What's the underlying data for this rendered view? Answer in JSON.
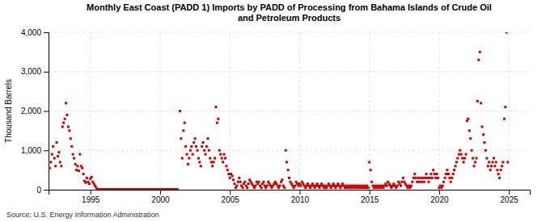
{
  "chart_data": {
    "type": "scatter",
    "title": "Monthly East Coast (PADD 1) Imports by PADD of Processing from Bahama Islands of Crude Oil\nand Petroleum Products",
    "ylabel": "Thousand Barrels",
    "annotations": [
      "Source: U.S. Energy Information Administration"
    ],
    "color": "#cc0000",
    "marker": "square",
    "grid": true,
    "xlim": [
      1992.0,
      2026.5
    ],
    "ylim": [
      0,
      4000
    ],
    "xticks": [
      1995,
      2000,
      2005,
      2010,
      2015,
      2020,
      2025
    ],
    "yticks": [
      0,
      {
        "value": 1000,
        "label": "1,000"
      },
      {
        "value": 2000,
        "label": "2,000"
      },
      {
        "value": 3000,
        "label": "3,000"
      },
      {
        "value": 4000,
        "label": "4,000"
      }
    ],
    "x": [
      1992.08,
      1992.17,
      1992.25,
      1992.33,
      1992.42,
      1992.5,
      1992.58,
      1992.67,
      1992.75,
      1992.83,
      1992.92,
      1993.0,
      1993.08,
      1993.17,
      1993.25,
      1993.33,
      1993.42,
      1993.5,
      1993.58,
      1993.67,
      1993.75,
      1993.83,
      1993.92,
      1994.0,
      1994.08,
      1994.17,
      1994.25,
      1994.33,
      1994.42,
      1994.5,
      1994.58,
      1994.67,
      1994.75,
      1994.83,
      1994.92,
      1995.0,
      1995.08,
      1995.17,
      1995.25,
      1995.33,
      1995.42,
      1995.5,
      1995.58,
      1995.67,
      1995.75,
      1995.83,
      1995.92,
      1996.0,
      1996.08,
      1996.17,
      1996.25,
      1996.33,
      1996.42,
      1996.5,
      1996.58,
      1996.67,
      1996.75,
      1996.83,
      1996.92,
      1997.0,
      1997.08,
      1997.17,
      1997.25,
      1997.33,
      1997.42,
      1997.5,
      1997.58,
      1997.67,
      1997.75,
      1997.83,
      1997.92,
      1998.0,
      1998.08,
      1998.17,
      1998.25,
      1998.33,
      1998.42,
      1998.5,
      1998.58,
      1998.67,
      1998.75,
      1998.83,
      1998.92,
      1999.0,
      1999.08,
      1999.17,
      1999.25,
      1999.33,
      1999.42,
      1999.5,
      1999.58,
      1999.67,
      1999.75,
      1999.83,
      1999.92,
      2000.0,
      2000.08,
      2000.17,
      2000.25,
      2000.33,
      2000.42,
      2000.5,
      2000.58,
      2000.67,
      2000.75,
      2000.83,
      2000.92,
      2001.0,
      2001.08,
      2001.17,
      2001.25,
      2001.42,
      2001.5,
      2001.58,
      2001.67,
      2001.75,
      2001.83,
      2001.92,
      2002.0,
      2002.08,
      2002.17,
      2002.25,
      2002.33,
      2002.42,
      2002.5,
      2002.58,
      2002.67,
      2002.75,
      2002.83,
      2002.92,
      2003.0,
      2003.08,
      2003.17,
      2003.25,
      2003.33,
      2003.42,
      2003.5,
      2003.58,
      2003.67,
      2003.75,
      2003.83,
      2003.92,
      2004.0,
      2004.08,
      2004.17,
      2004.25,
      2004.33,
      2004.42,
      2004.5,
      2004.58,
      2004.67,
      2004.75,
      2004.83,
      2004.92,
      2005.0,
      2005.08,
      2005.17,
      2005.25,
      2005.33,
      2005.42,
      2005.5,
      2005.58,
      2005.67,
      2005.75,
      2005.83,
      2005.92,
      2006.0,
      2006.08,
      2006.17,
      2006.25,
      2006.33,
      2006.42,
      2006.5,
      2006.58,
      2006.67,
      2006.75,
      2006.83,
      2006.92,
      2007.0,
      2007.08,
      2007.17,
      2007.25,
      2007.33,
      2007.42,
      2007.5,
      2007.58,
      2007.67,
      2007.75,
      2007.83,
      2007.92,
      2008.0,
      2008.08,
      2008.17,
      2008.25,
      2008.33,
      2008.42,
      2008.5,
      2008.58,
      2008.67,
      2008.75,
      2008.83,
      2008.92,
      2009.0,
      2009.08,
      2009.17,
      2009.25,
      2009.33,
      2009.42,
      2009.5,
      2009.58,
      2009.67,
      2009.75,
      2009.83,
      2009.92,
      2010.0,
      2010.08,
      2010.17,
      2010.25,
      2010.33,
      2010.42,
      2010.5,
      2010.58,
      2010.67,
      2010.75,
      2010.83,
      2010.92,
      2011.0,
      2011.08,
      2011.17,
      2011.25,
      2011.33,
      2011.42,
      2011.5,
      2011.58,
      2011.67,
      2011.75,
      2011.83,
      2011.92,
      2012.0,
      2012.08,
      2012.17,
      2012.25,
      2012.33,
      2012.42,
      2012.5,
      2012.58,
      2012.67,
      2012.75,
      2012.83,
      2012.92,
      2013.0,
      2013.08,
      2013.17,
      2013.25,
      2013.33,
      2013.42,
      2013.5,
      2013.58,
      2013.67,
      2013.75,
      2013.83,
      2013.92,
      2014.0,
      2014.08,
      2014.17,
      2014.25,
      2014.33,
      2014.42,
      2014.5,
      2014.58,
      2014.67,
      2014.75,
      2014.83,
      2014.92,
      2015.0,
      2015.08,
      2015.17,
      2015.25,
      2015.33,
      2015.42,
      2015.5,
      2015.58,
      2015.67,
      2015.75,
      2015.83,
      2015.92,
      2016.0,
      2016.08,
      2016.17,
      2016.25,
      2016.33,
      2016.42,
      2016.5,
      2016.58,
      2016.67,
      2016.75,
      2016.83,
      2016.92,
      2017.0,
      2017.08,
      2017.17,
      2017.25,
      2017.33,
      2017.42,
      2017.5,
      2017.58,
      2017.67,
      2017.75,
      2017.83,
      2017.92,
      2018.0,
      2018.08,
      2018.17,
      2018.25,
      2018.33,
      2018.42,
      2018.5,
      2018.58,
      2018.67,
      2018.75,
      2018.83,
      2018.92,
      2019.0,
      2019.08,
      2019.17,
      2019.25,
      2019.33,
      2019.42,
      2019.5,
      2019.58,
      2019.67,
      2019.75,
      2019.83,
      2019.92,
      2020.0,
      2020.08,
      2020.17,
      2020.25,
      2020.33,
      2020.42,
      2020.5,
      2020.58,
      2020.67,
      2020.75,
      2020.83,
      2020.92,
      2021.0,
      2021.08,
      2021.17,
      2021.25,
      2021.33,
      2021.42,
      2021.5,
      2021.58,
      2021.67,
      2021.75,
      2021.83,
      2021.92,
      2022.0,
      2022.08,
      2022.17,
      2022.25,
      2022.33,
      2022.42,
      2022.5,
      2022.58,
      2022.67,
      2022.75,
      2022.83,
      2022.92,
      2023.0,
      2023.08,
      2023.17,
      2023.25,
      2023.33,
      2023.42,
      2023.5,
      2023.58,
      2023.67,
      2023.75,
      2023.83,
      2023.92,
      2024.0,
      2024.08,
      2024.17,
      2024.25,
      2024.33,
      2024.42,
      2024.5,
      2024.58,
      2024.67,
      2024.75,
      2024.83,
      2024.92
    ],
    "values": [
      550,
      700,
      900,
      1100,
      800,
      600,
      1200,
      850,
      950,
      700,
      600,
      1600,
      1700,
      1800,
      2200,
      1900,
      1600,
      1500,
      1300,
      1100,
      900,
      800,
      650,
      500,
      600,
      480,
      900,
      600,
      550,
      400,
      220,
      180,
      300,
      200,
      150,
      280,
      320,
      200,
      150,
      100,
      50,
      5,
      5,
      5,
      5,
      5,
      5,
      5,
      5,
      5,
      5,
      5,
      5,
      5,
      5,
      5,
      5,
      5,
      5,
      5,
      5,
      5,
      5,
      5,
      5,
      5,
      5,
      5,
      5,
      5,
      5,
      5,
      5,
      5,
      5,
      5,
      5,
      5,
      5,
      5,
      5,
      5,
      5,
      5,
      5,
      5,
      5,
      5,
      5,
      5,
      5,
      5,
      5,
      5,
      5,
      5,
      5,
      5,
      5,
      5,
      5,
      5,
      5,
      5,
      5,
      5,
      5,
      5,
      5,
      5,
      5,
      2000,
      1300,
      800,
      1500,
      1700,
      1100,
      900,
      650,
      800,
      1000,
      1100,
      900,
      1200,
      1300,
      1100,
      1000,
      800,
      700,
      600,
      1100,
      1200,
      1000,
      900,
      1100,
      1300,
      1000,
      800,
      700,
      600,
      700,
      800,
      2100,
      1700,
      1800,
      1000,
      900,
      800,
      700,
      900,
      800,
      600,
      500,
      400,
      300,
      400,
      350,
      250,
      150,
      50,
      100,
      200,
      300,
      200,
      100,
      50,
      150,
      200,
      100,
      50,
      150,
      250,
      200,
      150,
      100,
      50,
      100,
      200,
      150,
      200,
      100,
      50,
      150,
      200,
      100,
      50,
      100,
      200,
      150,
      100,
      50,
      100,
      150,
      200,
      150,
      100,
      50,
      100,
      200,
      250,
      100,
      50,
      1000,
      700,
      500,
      300,
      200,
      150,
      100,
      50,
      100,
      200,
      150,
      100,
      150,
      100,
      200,
      150,
      100,
      50,
      100,
      150,
      100,
      50,
      100,
      150,
      100,
      50,
      100,
      150,
      100,
      50,
      100,
      150,
      100,
      50,
      100,
      50,
      100,
      150,
      100,
      50,
      100,
      150,
      100,
      50,
      100,
      150,
      100,
      50,
      100,
      150,
      100,
      50,
      100,
      50,
      100,
      50,
      100,
      50,
      100,
      50,
      100,
      50,
      100,
      50,
      100,
      50,
      100,
      50,
      100,
      50,
      100,
      50,
      700,
      500,
      200,
      100,
      50,
      100,
      50,
      100,
      50,
      100,
      50,
      100,
      50,
      100,
      150,
      100,
      200,
      150,
      100,
      50,
      100,
      150,
      100,
      50,
      100,
      200,
      150,
      100,
      200,
      300,
      200,
      150,
      100,
      50,
      100,
      50,
      100,
      200,
      300,
      400,
      300,
      200,
      300,
      200,
      300,
      200,
      300,
      200,
      300,
      400,
      300,
      200,
      300,
      400,
      300,
      500,
      400,
      300,
      400,
      300,
      50,
      100,
      50,
      100,
      200,
      300,
      400,
      500,
      400,
      300,
      200,
      300,
      400,
      500,
      600,
      700,
      800,
      900,
      1000,
      900,
      800,
      700,
      800,
      900,
      1750,
      1800,
      1500,
      1300,
      1000,
      800,
      600,
      700,
      800,
      2250,
      3300,
      3500,
      2200,
      1600,
      1400,
      1200,
      1000,
      800,
      600,
      700,
      500,
      600,
      700,
      800,
      600,
      700,
      500,
      400,
      300,
      500,
      600,
      700,
      1800,
      2100,
      4000,
      700
    ]
  }
}
